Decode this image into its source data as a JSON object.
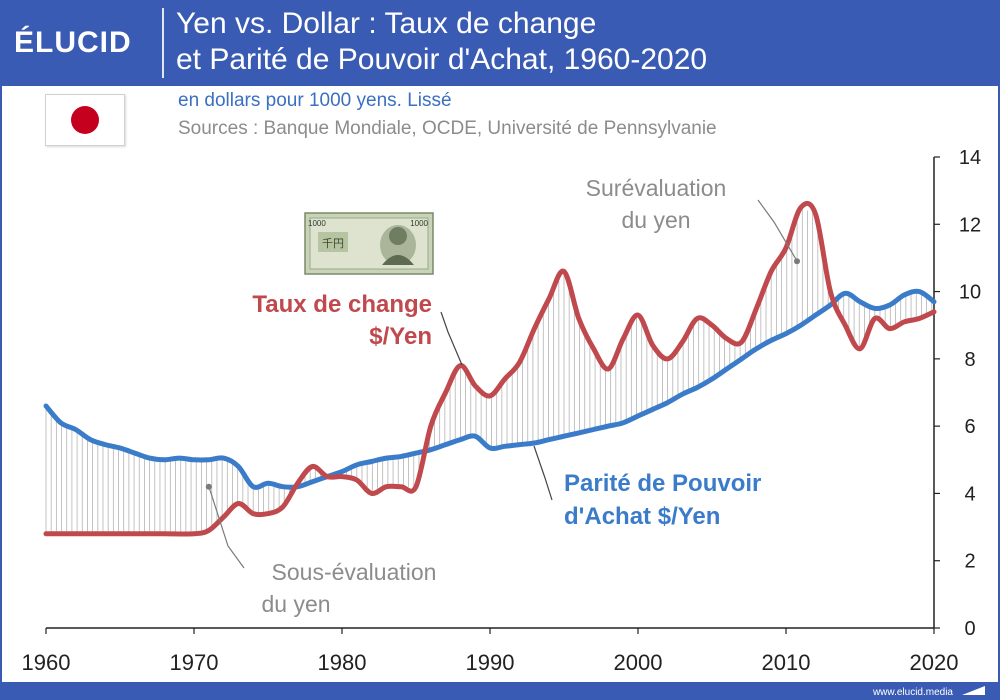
{
  "header": {
    "logo": "ÉLUCID",
    "title_line1": "Yen vs. Dollar : Taux de change",
    "title_line2": "et Parité de Pouvoir d'Achat, 1960-2020",
    "background": "#3a5bb3"
  },
  "subtitle": "en dollars pour 1000 yens. Lissé",
  "sources": "Sources : Banque Mondiale, OCDE, Université de Pennsylvanie",
  "flag": {
    "icon": "japan-flag-icon"
  },
  "banknote": {
    "icon": "yen-banknote-icon",
    "denomination": "1000"
  },
  "footer": {
    "brand": "www.elucid.media"
  },
  "colors": {
    "exchange": "#c0494d",
    "ppp": "#3a7cc9",
    "annotation": "#8c8c8c",
    "header": "#3a5bb3"
  },
  "chart_data": {
    "type": "line",
    "title": "",
    "xlabel": "",
    "ylabel": "",
    "xlim": [
      1960,
      2020
    ],
    "ylim": [
      0,
      14
    ],
    "xticks": [
      "1960",
      "1970",
      "1980",
      "1990",
      "2000",
      "2010",
      "2020"
    ],
    "yticks": [
      "0",
      "2",
      "4",
      "6",
      "8",
      "10",
      "12",
      "14"
    ],
    "y_axis_side": "right",
    "series": [
      {
        "name": "Taux de change $/Yen",
        "color": "#c0494d",
        "label_lines": [
          "Taux de change",
          "$/Yen"
        ],
        "x": [
          1960,
          1962,
          1964,
          1966,
          1968,
          1970,
          1971,
          1972,
          1973,
          1974,
          1975,
          1976,
          1977,
          1978,
          1979,
          1980,
          1981,
          1982,
          1983,
          1984,
          1985,
          1986,
          1987,
          1988,
          1989,
          1990,
          1991,
          1992,
          1993,
          1994,
          1995,
          1996,
          1997,
          1998,
          1999,
          2000,
          2001,
          2002,
          2003,
          2004,
          2005,
          2006,
          2007,
          2008,
          2009,
          2010,
          2011,
          2012,
          2013,
          2014,
          2015,
          2016,
          2017,
          2018,
          2019,
          2020
        ],
        "y": [
          2.8,
          2.8,
          2.8,
          2.8,
          2.8,
          2.8,
          2.9,
          3.3,
          3.7,
          3.4,
          3.4,
          3.6,
          4.3,
          4.8,
          4.5,
          4.5,
          4.4,
          4.0,
          4.2,
          4.2,
          4.2,
          6.0,
          7.0,
          7.8,
          7.2,
          6.9,
          7.4,
          7.9,
          8.9,
          9.8,
          10.6,
          9.2,
          8.3,
          7.7,
          8.6,
          9.3,
          8.4,
          8.0,
          8.5,
          9.2,
          9.0,
          8.6,
          8.5,
          9.5,
          10.6,
          11.3,
          12.5,
          12.3,
          10.0,
          9.0,
          8.3,
          9.2,
          8.9,
          9.1,
          9.2,
          9.4
        ]
      },
      {
        "name": "Parité de Pouvoir d'Achat $/Yen",
        "color": "#3a7cc9",
        "label_lines": [
          "Parité de Pouvoir",
          "d'Achat $/Yen"
        ],
        "x": [
          1960,
          1961,
          1962,
          1963,
          1964,
          1965,
          1966,
          1967,
          1968,
          1969,
          1970,
          1971,
          1972,
          1973,
          1974,
          1975,
          1976,
          1977,
          1978,
          1979,
          1980,
          1981,
          1982,
          1983,
          1984,
          1985,
          1986,
          1987,
          1988,
          1989,
          1990,
          1991,
          1992,
          1993,
          1994,
          1995,
          1996,
          1997,
          1998,
          1999,
          2000,
          2001,
          2002,
          2003,
          2004,
          2005,
          2006,
          2007,
          2008,
          2009,
          2010,
          2011,
          2012,
          2013,
          2014,
          2015,
          2016,
          2017,
          2018,
          2019,
          2020
        ],
        "y": [
          6.6,
          6.1,
          5.9,
          5.6,
          5.45,
          5.35,
          5.2,
          5.05,
          5.0,
          5.05,
          5.0,
          5.0,
          5.05,
          4.8,
          4.2,
          4.3,
          4.2,
          4.2,
          4.35,
          4.5,
          4.65,
          4.85,
          4.95,
          5.05,
          5.1,
          5.2,
          5.3,
          5.45,
          5.6,
          5.7,
          5.35,
          5.4,
          5.45,
          5.5,
          5.6,
          5.7,
          5.8,
          5.9,
          6.0,
          6.1,
          6.3,
          6.5,
          6.7,
          6.95,
          7.15,
          7.4,
          7.7,
          8.0,
          8.3,
          8.55,
          8.75,
          9.0,
          9.3,
          9.6,
          9.95,
          9.7,
          9.5,
          9.6,
          9.9,
          10.0,
          9.7
        ]
      }
    ],
    "annotations": [
      {
        "lines": [
          "Surévaluation",
          "du yen"
        ],
        "target": [
          2011,
          10.9
        ]
      },
      {
        "lines": [
          "Sous-évaluation",
          "du yen"
        ],
        "target": [
          1971,
          4.2
        ]
      }
    ]
  }
}
